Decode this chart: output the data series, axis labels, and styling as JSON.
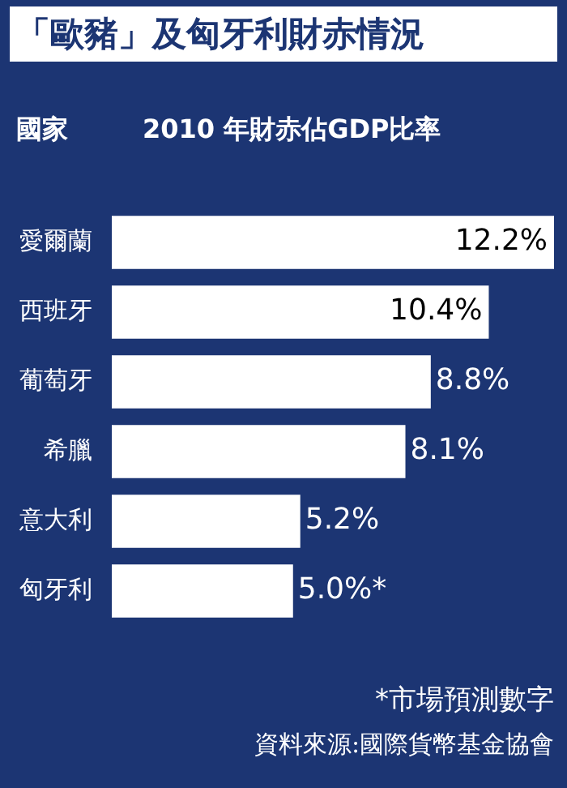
{
  "chart_data": {
    "type": "bar",
    "orientation": "horizontal",
    "title": "「歐豬」及匈牙利財赤情況",
    "ylabel": "國家",
    "xlabel": "2010 年財赤佔GDP比率",
    "categories": [
      "愛爾蘭",
      "西班牙",
      "葡萄牙",
      "希臘",
      "意大利",
      "匈牙利"
    ],
    "values": [
      12.2,
      10.4,
      8.8,
      8.1,
      5.2,
      5.0
    ],
    "value_labels": [
      "12.2%",
      "10.4%",
      "8.8%",
      "8.1%",
      "5.2%",
      "5.0%*"
    ],
    "color": "#ffffff",
    "grid": false,
    "legend": false,
    "annotations": [
      "*市場預測數字",
      "資料來源:國際貨幣基金協會"
    ]
  }
}
